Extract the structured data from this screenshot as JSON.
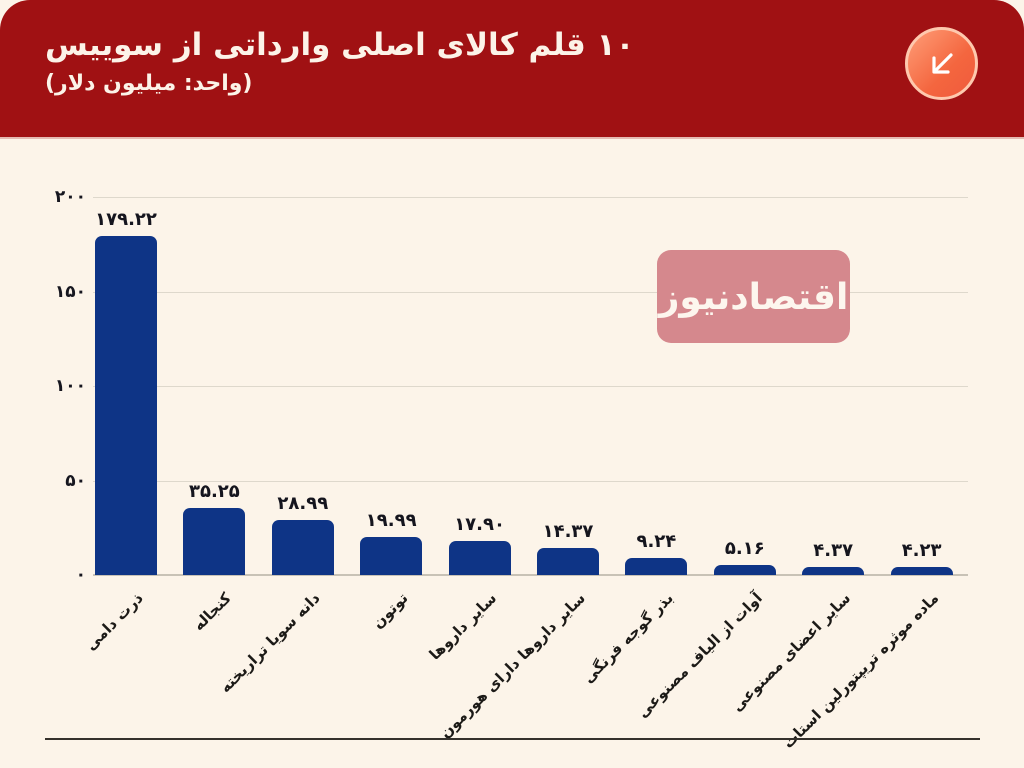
{
  "header": {
    "title": "۱۰ قلم کالای اصلی وارداتی از سوییس",
    "subtitle": "(واحد: میلیون دلار)"
  },
  "watermark": {
    "text": "اقتصادنیوز"
  },
  "chart_data": {
    "type": "bar",
    "title": "۱۰ قلم کالای اصلی وارداتی از سوییس",
    "unit_label": "میلیون دلار",
    "categories": [
      "ذرت دامی",
      "کنجاله",
      "دانه سویا تراریخته",
      "توتون",
      "سایر داروها",
      "سایر داروها دارای هورمون",
      "بذر گوجه فرنگی",
      "آوات از الیاف مصنوعی",
      "سایر اعضای مصنوعی",
      "ماده موثره تریپتورلین استات"
    ],
    "values": [
      179.22,
      35.25,
      28.99,
      19.99,
      17.9,
      14.37,
      9.24,
      5.16,
      4.37,
      4.23
    ],
    "value_labels": [
      "۱۷۹.۲۲",
      "۳۵.۲۵",
      "۲۸.۹۹",
      "۱۹.۹۹",
      "۱۷.۹۰",
      "۱۴.۳۷",
      "۹.۲۴",
      "۵.۱۶",
      "۴.۳۷",
      "۴.۲۳"
    ],
    "y_ticks": [
      {
        "label": "۲۰۰",
        "value": 200
      },
      {
        "label": "۱۵۰",
        "value": 150
      },
      {
        "label": "۱۰۰",
        "value": 100
      },
      {
        "label": "۵۰",
        "value": 50
      },
      {
        "label": "۰",
        "value": 0
      }
    ],
    "ylim": [
      0,
      200
    ],
    "grid": true,
    "legend": false,
    "xlabel_rotation_deg": -45
  },
  "colors": {
    "background": "#fcf4e9",
    "header_bg": "#a01113",
    "header_text": "#fcf3e8",
    "bar": "#0e3486",
    "gridline": "#ded8cc",
    "baseline": "#c8c2b6",
    "tick_text": "#16161f",
    "watermark_bg": "#d5888d",
    "icon_gradient_start": "#ff9e78",
    "icon_gradient_end": "#ef5a3c",
    "divider": "#35312c"
  }
}
